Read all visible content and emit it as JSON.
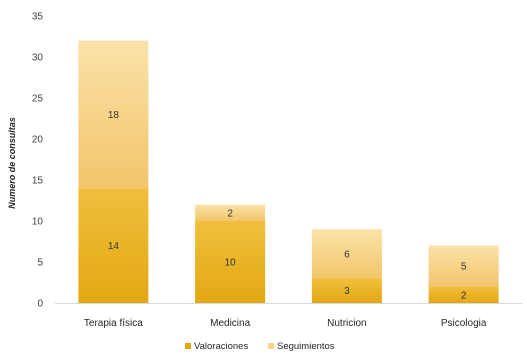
{
  "chart_data": {
    "type": "bar",
    "stacked": true,
    "title": "",
    "xlabel": "",
    "ylabel": "Numero de consultas",
    "ylim": [
      0,
      35
    ],
    "yticks": [
      0,
      5,
      10,
      15,
      20,
      25,
      30,
      35
    ],
    "grid": false,
    "legend_position": "bottom",
    "categories": [
      "Terapia física",
      "Medicina",
      "Nutricion",
      "Psicologia"
    ],
    "series": [
      {
        "name": "Valoraciones",
        "values": [
          14,
          10,
          3,
          2
        ],
        "color": "#E3A813",
        "gradient": [
          "#E3A813",
          "#F0BF3C"
        ]
      },
      {
        "name": "Seguimientos",
        "values": [
          18,
          2,
          6,
          5
        ],
        "color": "#F8D68C",
        "gradient": [
          "#F2C56A",
          "#FBE2A8"
        ]
      }
    ]
  }
}
